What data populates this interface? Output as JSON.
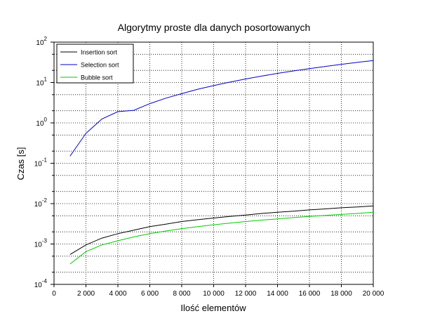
{
  "chart_data": {
    "type": "line",
    "title": "Algorytmy proste dla danych posortowanych",
    "xlabel": "Ilość elementów",
    "ylabel": "Czas [s]",
    "xlim": [
      0,
      20000
    ],
    "ylim": [
      0.0001,
      100
    ],
    "y_scale": "log",
    "grid": true,
    "legend_position": "top-left",
    "x_ticks": [
      0,
      2000,
      4000,
      6000,
      8000,
      10000,
      12000,
      14000,
      16000,
      18000,
      20000
    ],
    "x_tick_labels": [
      "0",
      "2 000",
      "4 000",
      "6 000",
      "8 000",
      "10 000",
      "12 000",
      "14 000",
      "16 000",
      "18 000",
      "20 000"
    ],
    "y_ticks": [
      0.0001,
      0.001,
      0.01,
      0.1,
      1,
      10,
      100
    ],
    "y_tick_labels": [
      {
        "base": "10",
        "exp": "-4"
      },
      {
        "base": "10",
        "exp": "-3"
      },
      {
        "base": "10",
        "exp": "-2"
      },
      {
        "base": "10",
        "exp": "-1"
      },
      {
        "base": "10",
        "exp": "0"
      },
      {
        "base": "10",
        "exp": "1"
      },
      {
        "base": "10",
        "exp": "2"
      }
    ],
    "x": [
      1000,
      2000,
      3000,
      4000,
      5000,
      6000,
      7000,
      8000,
      9000,
      10000,
      11000,
      12000,
      13000,
      14000,
      15000,
      16000,
      17000,
      18000,
      19000,
      20000
    ],
    "series": [
      {
        "name": "Insertion sort",
        "color": "#000000",
        "values": [
          0.00055,
          0.00095,
          0.0014,
          0.0018,
          0.0022,
          0.0027,
          0.0031,
          0.0036,
          0.004,
          0.0044,
          0.0048,
          0.0052,
          0.0057,
          0.0061,
          0.0065,
          0.007,
          0.0074,
          0.0079,
          0.0083,
          0.0088
        ]
      },
      {
        "name": "Selection sort",
        "color": "#0000cc",
        "values": [
          0.15,
          0.55,
          1.25,
          1.9,
          2.05,
          3.0,
          4.1,
          5.3,
          6.8,
          8.4,
          10.2,
          12.2,
          14.4,
          16.8,
          19.4,
          22.1,
          25.0,
          28.2,
          31.5,
          35.0
        ]
      },
      {
        "name": "Bubble sort",
        "color": "#00cc00",
        "values": [
          0.00032,
          0.00065,
          0.00095,
          0.0012,
          0.0015,
          0.0018,
          0.0021,
          0.0024,
          0.0027,
          0.003,
          0.0033,
          0.0036,
          0.0039,
          0.0042,
          0.0045,
          0.0048,
          0.0051,
          0.0054,
          0.0057,
          0.0061
        ]
      }
    ]
  }
}
